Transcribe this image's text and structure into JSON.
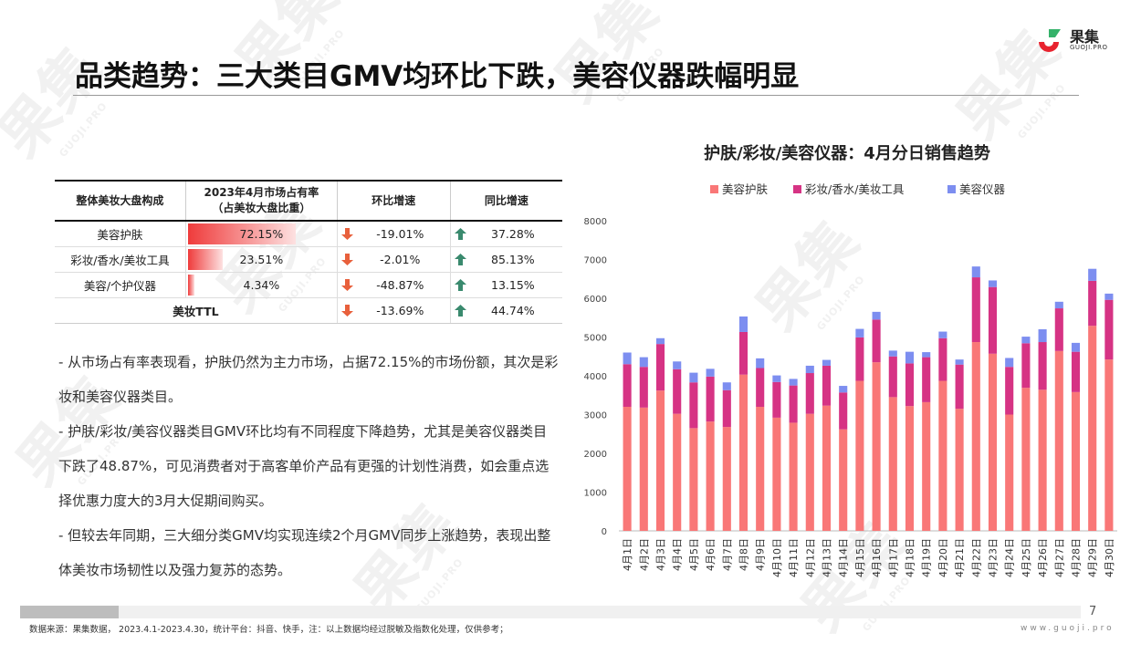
{
  "header": {
    "title": "品类趋势：三大类目GMV均环比下跌，美容仪器跌幅明显",
    "brand": "果集",
    "brand_sub": "GUOJI.PRO",
    "watermark": "果集",
    "watermark_sub": "GUOJI.PRO"
  },
  "table": {
    "headers": [
      "整体美妆大盘构成",
      "2023年4月市场占有率\n（占美妆大盘比重）",
      "环比增速",
      "同比增速"
    ],
    "rows": [
      {
        "name": "美容护肤",
        "share": "72.15%",
        "share_value": 72.15,
        "mom": "-19.01%",
        "yoy": "37.28%"
      },
      {
        "name": "彩妆/香水/美妆工具",
        "share": "23.51%",
        "share_value": 23.51,
        "mom": "-2.01%",
        "yoy": "85.13%"
      },
      {
        "name": "美容/个护仪器",
        "share": "4.34%",
        "share_value": 4.34,
        "mom": "-48.87%",
        "yoy": "13.15%"
      }
    ],
    "total": {
      "name": "美妆TTL",
      "mom": "-13.69%",
      "yoy": "44.74%"
    },
    "colors": {
      "down": "#e8603c",
      "up": "#3a8a6e",
      "share_bar": "#ef3b3b"
    }
  },
  "notes": [
    "- 从市场占有率表现看，护肤仍然为主力市场，占据72.15%的市场份额，其次是彩妆和美容仪器类目。",
    "- 护肤/彩妆/美容仪器类目GMV环比均有不同程度下降趋势，尤其是美容仪器类目下跌了48.87%，可见消费者对于高客单价产品有更强的计划性消费，如会重点选择优惠力度大的3月大促期间购买。",
    "- 但较去年同期，三大细分类GMV均实现连续2个月GMV同步上涨趋势，表现出整体美妆市场韧性以及强力复苏的态势。"
  ],
  "chart_data": {
    "type": "bar",
    "stacked": true,
    "title": "护肤/彩妆/美容仪器：4月分日销售趋势",
    "legend_position": "top",
    "categories": [
      "4月1日",
      "4月2日",
      "4月3日",
      "4月4日",
      "4月5日",
      "4月6日",
      "4月7日",
      "4月8日",
      "4月9日",
      "4月10日",
      "4月11日",
      "4月12日",
      "4月13日",
      "4月14日",
      "4月15日",
      "4月16日",
      "4月17日",
      "4月18日",
      "4月19日",
      "4月20日",
      "4月21日",
      "4月22日",
      "4月23日",
      "4月24日",
      "4月25日",
      "4月26日",
      "4月27日",
      "4月28日",
      "4月29日",
      "4月30日"
    ],
    "series": [
      {
        "name": "美容护肤",
        "color": "#f97777",
        "values": [
          3200,
          3180,
          3620,
          3020,
          2650,
          2820,
          2680,
          4030,
          3200,
          2920,
          2790,
          3020,
          3230,
          2620,
          3870,
          4350,
          3450,
          3220,
          3320,
          3870,
          3150,
          4870,
          4570,
          3000,
          3690,
          3640,
          4640,
          3580,
          5290,
          4420
        ]
      },
      {
        "name": "彩妆/香水/美妆工具",
        "color": "#d63384",
        "values": [
          1100,
          1050,
          1200,
          1150,
          1180,
          1160,
          950,
          1100,
          1000,
          920,
          960,
          1050,
          1030,
          950,
          1120,
          1100,
          1050,
          1100,
          1160,
          1100,
          1140,
          1670,
          1720,
          1230,
          1150,
          1230,
          1100,
          1040,
          1160,
          1540
        ]
      },
      {
        "name": "美容仪器",
        "color": "#7d8ef0",
        "values": [
          300,
          250,
          150,
          200,
          250,
          200,
          200,
          400,
          250,
          170,
          170,
          190,
          150,
          170,
          220,
          200,
          150,
          300,
          130,
          170,
          130,
          280,
          170,
          230,
          170,
          330,
          170,
          230,
          310,
          160
        ]
      }
    ],
    "ylim": [
      0,
      8000
    ],
    "yticks": [
      0,
      1000,
      2000,
      3000,
      4000,
      5000,
      6000,
      7000,
      8000
    ],
    "grid": false
  },
  "footer": {
    "source": "数据来源：果集数据， 2023.4.1-2023.4.30，统计平台：抖音、快手，注：以上数据均经过脱敏及指数化处理，仅供参考；",
    "page": "7",
    "site": "www.guoji.pro"
  }
}
